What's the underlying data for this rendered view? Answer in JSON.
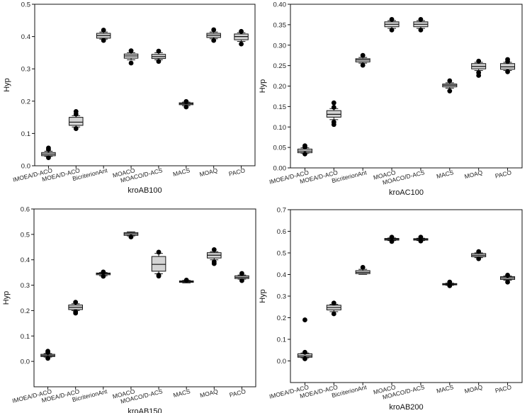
{
  "chart_data": [
    {
      "type": "box",
      "title": "kroAB100",
      "xlabel": "kroAB100",
      "ylabel": "Hyp",
      "ylim": [
        0,
        0.5
      ],
      "yticks": [
        "0.0",
        "0.1",
        "0.2",
        "0.3",
        "0.4",
        "0.5"
      ],
      "categories": [
        "IMOEA/D-ACO",
        "MOEA/D-ACO",
        "BicriterionAnt",
        "MOACO",
        "MOACO/D-ACS",
        "MACS",
        "MOAQ",
        "PACO"
      ],
      "series": [
        {
          "name": "IMOEA/D-ACO",
          "min": 0.029,
          "q1": 0.031,
          "median": 0.036,
          "q3": 0.041,
          "max": 0.045,
          "outliers": [
            0.025,
            0.05,
            0.055
          ]
        },
        {
          "name": "MOEA/D-ACO",
          "min": 0.12,
          "q1": 0.125,
          "median": 0.135,
          "q3": 0.15,
          "max": 0.155,
          "outliers": [
            0.115,
            0.16,
            0.168
          ]
        },
        {
          "name": "BicriterionAnt",
          "min": 0.392,
          "q1": 0.395,
          "median": 0.403,
          "q3": 0.41,
          "max": 0.414,
          "outliers": [
            0.388,
            0.42
          ]
        },
        {
          "name": "MOACO",
          "min": 0.328,
          "q1": 0.333,
          "median": 0.34,
          "q3": 0.346,
          "max": 0.35,
          "outliers": [
            0.318,
            0.356
          ]
        },
        {
          "name": "MOACO/D-ACS",
          "min": 0.328,
          "q1": 0.332,
          "median": 0.338,
          "q3": 0.345,
          "max": 0.35,
          "outliers": [
            0.323,
            0.355
          ]
        },
        {
          "name": "MACS",
          "min": 0.186,
          "q1": 0.189,
          "median": 0.192,
          "q3": 0.195,
          "max": 0.197,
          "outliers": [
            0.182,
            0.199
          ]
        },
        {
          "name": "MOAQ",
          "min": 0.393,
          "q1": 0.397,
          "median": 0.404,
          "q3": 0.41,
          "max": 0.414,
          "outliers": [
            0.388,
            0.421
          ]
        },
        {
          "name": "PACO",
          "min": 0.385,
          "q1": 0.39,
          "median": 0.4,
          "q3": 0.408,
          "max": 0.412,
          "outliers": [
            0.377,
            0.416
          ]
        }
      ]
    },
    {
      "type": "box",
      "title": "kroAC100",
      "xlabel": "kroAC100",
      "ylabel": "Hyp",
      "ylim": [
        0,
        0.4
      ],
      "yticks": [
        "0.00",
        "0.05",
        "0.10",
        "0.15",
        "0.20",
        "0.25",
        "0.30",
        "0.35",
        "0.40"
      ],
      "categories": [
        "IMOEA/D-ACO",
        "MOEA/D-ACO",
        "BicriterionAnt",
        "MOACO",
        "MOACO/D-ACS",
        "MACS",
        "MOAQ",
        "PACO"
      ],
      "series": [
        {
          "name": "IMOEA/D-ACO",
          "min": 0.036,
          "q1": 0.037,
          "median": 0.041,
          "q3": 0.046,
          "max": 0.049,
          "outliers": [
            0.034,
            0.051,
            0.054
          ]
        },
        {
          "name": "MOEA/D-ACO",
          "min": 0.118,
          "q1": 0.124,
          "median": 0.131,
          "q3": 0.14,
          "max": 0.145,
          "outliers": [
            0.106,
            0.112,
            0.148,
            0.159
          ]
        },
        {
          "name": "BicriterionAnt",
          "min": 0.256,
          "q1": 0.259,
          "median": 0.264,
          "q3": 0.267,
          "max": 0.27,
          "outliers": [
            0.251,
            0.275
          ]
        },
        {
          "name": "MOACO",
          "min": 0.341,
          "q1": 0.345,
          "median": 0.351,
          "q3": 0.357,
          "max": 0.36,
          "outliers": [
            0.337,
            0.363
          ]
        },
        {
          "name": "MOACO/D-ACS",
          "min": 0.341,
          "q1": 0.345,
          "median": 0.351,
          "q3": 0.357,
          "max": 0.36,
          "outliers": [
            0.337,
            0.363
          ]
        },
        {
          "name": "MACS",
          "min": 0.195,
          "q1": 0.198,
          "median": 0.202,
          "q3": 0.205,
          "max": 0.208,
          "outliers": [
            0.188,
            0.213
          ]
        },
        {
          "name": "MOAQ",
          "min": 0.238,
          "q1": 0.242,
          "median": 0.248,
          "q3": 0.255,
          "max": 0.258,
          "outliers": [
            0.226,
            0.233,
            0.261
          ]
        },
        {
          "name": "PACO",
          "min": 0.238,
          "q1": 0.241,
          "median": 0.247,
          "q3": 0.255,
          "max": 0.258,
          "outliers": [
            0.235,
            0.26,
            0.265
          ]
        }
      ]
    },
    {
      "type": "box",
      "title": "kroAB150",
      "xlabel": "kroAB150",
      "ylabel": "Hyp",
      "ylim": [
        -0.1,
        0.6
      ],
      "yticks": [
        "0.0",
        "0.1",
        "0.2",
        "0.3",
        "0.4",
        "0.5",
        "0.6"
      ],
      "categories": [
        "IMOEA/D-ACO",
        "MOEA/D-ACO",
        "BicriterionAnt",
        "MOACO",
        "MOACO/D-ACS",
        "MACS",
        "MOAQ",
        "PACO"
      ],
      "series": [
        {
          "name": "IMOEA/D-ACO",
          "min": 0.017,
          "q1": 0.019,
          "median": 0.023,
          "q3": 0.028,
          "max": 0.031,
          "outliers": [
            0.012,
            0.035,
            0.04
          ]
        },
        {
          "name": "MOEA/D-ACO",
          "min": 0.2,
          "q1": 0.204,
          "median": 0.213,
          "q3": 0.222,
          "max": 0.227,
          "outliers": [
            0.19,
            0.195,
            0.233
          ]
        },
        {
          "name": "BicriterionAnt",
          "min": 0.337,
          "q1": 0.341,
          "median": 0.345,
          "q3": 0.348,
          "max": 0.35,
          "outliers": [
            0.335,
            0.352
          ]
        },
        {
          "name": "MOACO",
          "min": 0.494,
          "q1": 0.496,
          "median": 0.502,
          "q3": 0.507,
          "max": 0.51,
          "outliers": [
            0.49
          ]
        },
        {
          "name": "MOACO/D-ACS",
          "min": 0.345,
          "q1": 0.355,
          "median": 0.382,
          "q3": 0.413,
          "max": 0.425,
          "outliers": [
            0.336,
            0.34,
            0.43
          ]
        },
        {
          "name": "MACS",
          "min": 0.309,
          "q1": 0.311,
          "median": 0.314,
          "q3": 0.317,
          "max": 0.319,
          "outliers": [
            0.32
          ]
        },
        {
          "name": "MOAQ",
          "min": 0.4,
          "q1": 0.407,
          "median": 0.418,
          "q3": 0.428,
          "max": 0.432,
          "outliers": [
            0.385,
            0.392,
            0.44
          ]
        },
        {
          "name": "PACO",
          "min": 0.324,
          "q1": 0.326,
          "median": 0.331,
          "q3": 0.337,
          "max": 0.34,
          "outliers": [
            0.318,
            0.346
          ]
        }
      ]
    },
    {
      "type": "box",
      "title": "kroAB200",
      "xlabel": "kroAB200",
      "ylabel": "Hyp",
      "ylim": [
        -0.1,
        0.7
      ],
      "yticks": [
        "0.0",
        "0.1",
        "0.2",
        "0.3",
        "0.4",
        "0.5",
        "0.6",
        "0.7"
      ],
      "categories": [
        "IMOEA/D-ACO",
        "MOEA/D-ACO",
        "BicriterionAnt",
        "MOACO",
        "MOACO/D-ACS",
        "MACS",
        "MOAQ",
        "PACO"
      ],
      "series": [
        {
          "name": "IMOEA/D-ACO",
          "min": 0.014,
          "q1": 0.017,
          "median": 0.023,
          "q3": 0.033,
          "max": 0.037,
          "outliers": [
            0.01,
            0.04,
            0.19
          ]
        },
        {
          "name": "MOEA/D-ACO",
          "min": 0.228,
          "q1": 0.236,
          "median": 0.247,
          "q3": 0.258,
          "max": 0.262,
          "outliers": [
            0.218,
            0.268
          ]
        },
        {
          "name": "BicriterionAnt",
          "min": 0.401,
          "q1": 0.404,
          "median": 0.41,
          "q3": 0.418,
          "max": 0.424,
          "outliers": [
            0.433
          ]
        },
        {
          "name": "MOACO",
          "min": 0.557,
          "q1": 0.559,
          "median": 0.563,
          "q3": 0.567,
          "max": 0.569,
          "outliers": [
            0.553,
            0.573
          ]
        },
        {
          "name": "MOACO/D-ACS",
          "min": 0.557,
          "q1": 0.559,
          "median": 0.563,
          "q3": 0.566,
          "max": 0.568,
          "outliers": [
            0.555,
            0.573
          ]
        },
        {
          "name": "MACS",
          "min": 0.35,
          "q1": 0.352,
          "median": 0.355,
          "q3": 0.358,
          "max": 0.36,
          "outliers": [
            0.348,
            0.365
          ]
        },
        {
          "name": "MOAQ",
          "min": 0.478,
          "q1": 0.482,
          "median": 0.489,
          "q3": 0.497,
          "max": 0.5,
          "outliers": [
            0.473,
            0.506
          ]
        },
        {
          "name": "PACO",
          "min": 0.374,
          "q1": 0.377,
          "median": 0.384,
          "q3": 0.39,
          "max": 0.393,
          "outliers": [
            0.365,
            0.397
          ]
        }
      ]
    }
  ]
}
